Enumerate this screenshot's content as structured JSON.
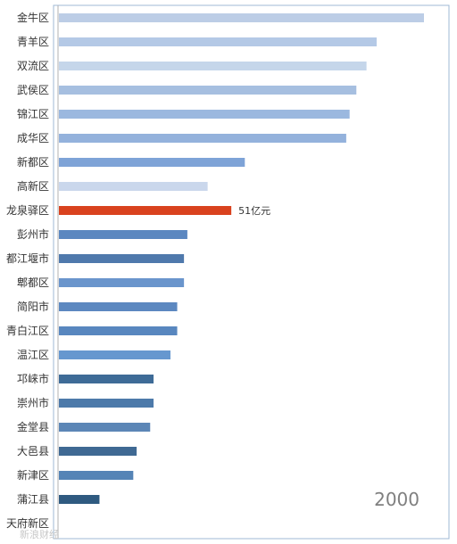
{
  "chart_data": {
    "type": "bar",
    "orientation": "horizontal",
    "year": "2000",
    "categories": [
      "金牛区",
      "青羊区",
      "双流区",
      "武侯区",
      "锦江区",
      "成华区",
      "新都区",
      "高新区",
      "龙泉驿区",
      "彭州市",
      "都江堰市",
      "郫都区",
      "简阳市",
      "青白江区",
      "温江区",
      "邛崃市",
      "崇州市",
      "金堂县",
      "大邑县",
      "新津区",
      "蒲江县",
      "天府新区"
    ],
    "values": [
      108,
      94,
      91,
      88,
      86,
      85,
      55,
      44,
      51,
      38,
      37,
      37,
      35,
      35,
      33,
      28,
      28,
      27,
      23,
      22,
      12,
      0
    ],
    "highlight": {
      "category": "龙泉驿区",
      "label": "51亿元",
      "color": "#d9421e"
    },
    "bar_colors": [
      "#bccde6",
      "#b4c9e6",
      "#c5d6ea",
      "#a6bfe0",
      "#9bb8df",
      "#94b2dc",
      "#7ea3d7",
      "#cad7ec",
      "#d9421e",
      "#5b87c0",
      "#4f79ac",
      "#6a95cc",
      "#5c88c0",
      "#5887bf",
      "#6697cf",
      "#3e6b97",
      "#4d7aaa",
      "#5c86b6",
      "#3f6993",
      "#5584b6",
      "#2f5a80",
      "#2f5a80"
    ],
    "xlim": [
      0,
      112
    ],
    "watermark": "新浪财经"
  }
}
